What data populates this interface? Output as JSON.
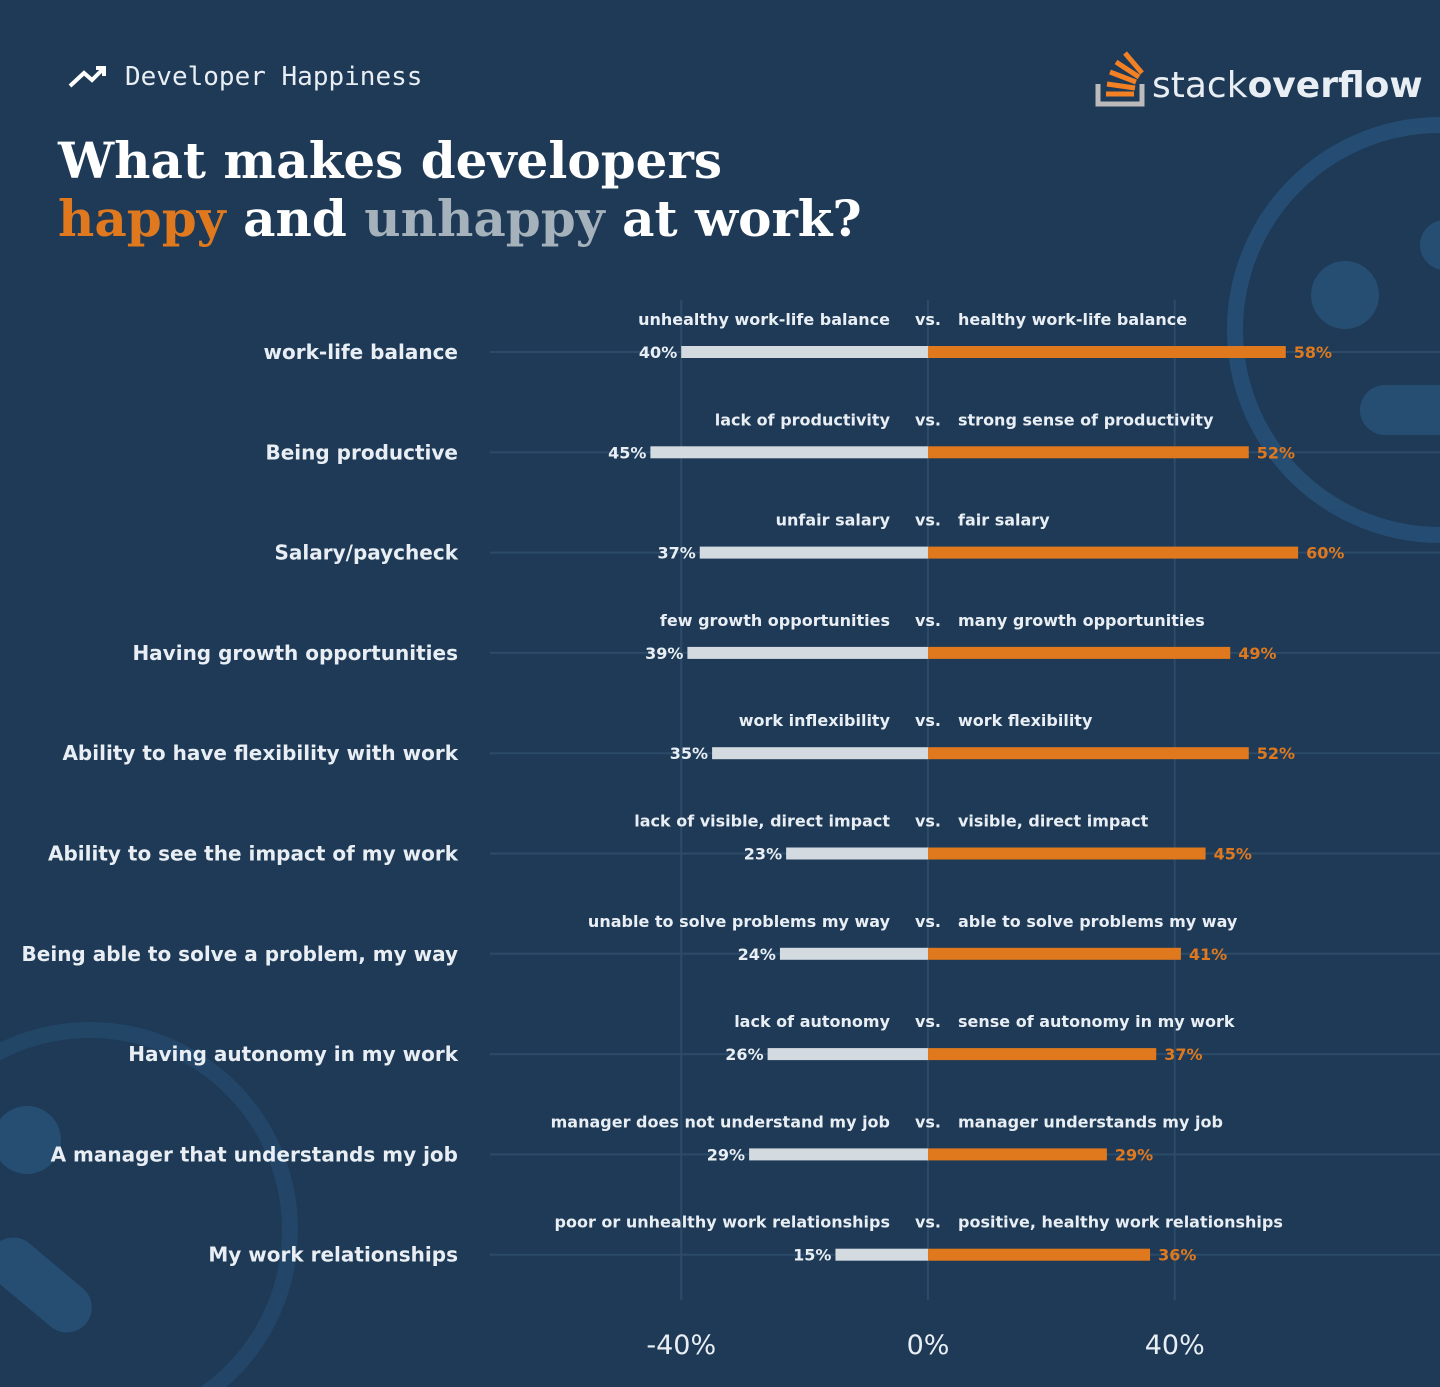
{
  "header": {
    "section": "Developer Happiness",
    "logo": {
      "light": "stack",
      "bold": "overflow"
    }
  },
  "chart_data": {
    "type": "diverging-bar",
    "title": {
      "line1": "What makes developers",
      "happy": "happy",
      "and": "and",
      "unhappy": "unhappy",
      "end": "at work?"
    },
    "categories": [
      "work-life balance",
      "Being productive",
      "Salary/paycheck",
      "Having growth opportunities",
      "Ability to have flexibility with work",
      "Ability to see the impact of my work",
      "Being able to solve a problem, my way",
      "Having autonomy in my work",
      "A manager that understands my job",
      "My work relationships"
    ],
    "separator": "vs.",
    "series": [
      {
        "color": "#d3dbe1",
        "labels": [
          "unhealthy work-life balance",
          "lack of productivity",
          "unfair salary",
          "few growth opportunities",
          "work inflexibility",
          "lack of visible, direct impact",
          "unable to solve problems my way",
          "lack of autonomy",
          "manager does not understand my job",
          "poor or unhealthy work relationships"
        ],
        "values": [
          40,
          45,
          37,
          39,
          35,
          23,
          24,
          26,
          29,
          15
        ],
        "value_labels": [
          "40%",
          "45%",
          "37%",
          "39%",
          "35%",
          "23%",
          "24%",
          "26%",
          "29%",
          "15%"
        ]
      },
      {
        "color": "#e0791e",
        "labels": [
          "healthy work-life balance",
          "strong sense of productivity",
          "fair salary",
          "many growth opportunities",
          "work flexibility",
          "visible, direct impact",
          "able to solve problems my way",
          "sense of autonomy in my work",
          "manager understands my job",
          "positive, healthy work relationships"
        ],
        "values": [
          58,
          52,
          60,
          49,
          52,
          45,
          41,
          37,
          29,
          36
        ],
        "value_labels": [
          "58%",
          "52%",
          "60%",
          "49%",
          "52%",
          "45%",
          "41%",
          "37%",
          "29%",
          "36%"
        ]
      }
    ],
    "xlim": [
      -71,
      83
    ],
    "xticks": [
      {
        "value": -40,
        "label": "-40%"
      },
      {
        "value": 0,
        "label": "0%"
      },
      {
        "value": 40,
        "label": "40%"
      }
    ],
    "grid": true
  }
}
